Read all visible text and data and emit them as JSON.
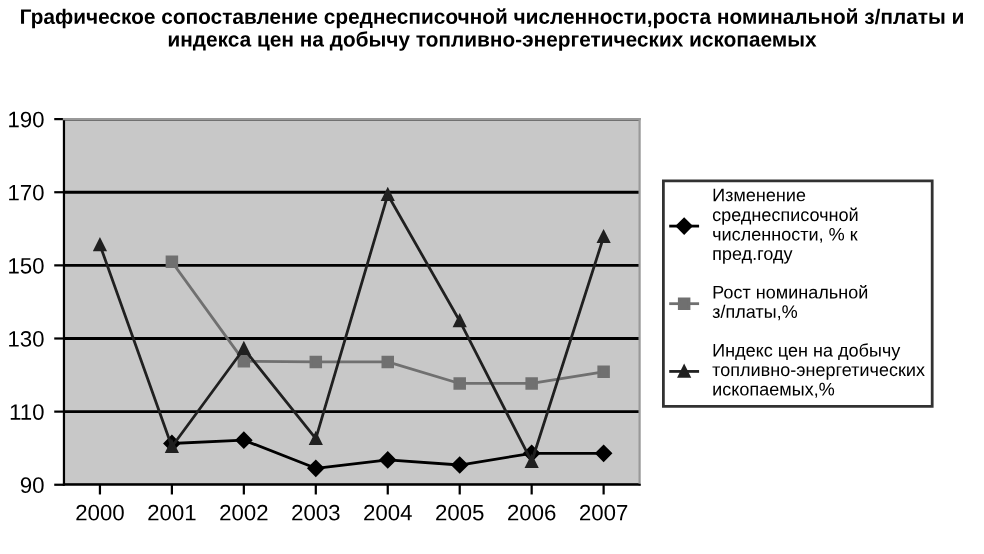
{
  "chart_data": {
    "type": "line",
    "title": "Графическое сопоставление среднесписочной численности,роста номинальной з/платы и индекса цен на добычу топливно-энергетических ископаемых",
    "categories": [
      "2000",
      "2001",
      "2002",
      "2003",
      "2004",
      "2005",
      "2006",
      "2007"
    ],
    "series": [
      {
        "name": "Изменение среднесписочной численности, % к пред.году",
        "color": "#000000",
        "marker": "diamond",
        "values": [
          null,
          101.3,
          102.2,
          94.5,
          96.8,
          95.4,
          98.6,
          98.6
        ]
      },
      {
        "name": "Рост номинальной з/платы,%",
        "color": "#707070",
        "marker": "square",
        "values": [
          null,
          151,
          123.8,
          123.6,
          123.6,
          117.7,
          117.7,
          120.9
        ]
      },
      {
        "name": "Индекс цен на добычу топливно-энергетических ископаемых,%",
        "color": "#202020",
        "marker": "triangle",
        "values": [
          155.6,
          100.4,
          127.2,
          102.6,
          169.3,
          134.8,
          96.3,
          157.8
        ]
      }
    ],
    "ylim": [
      90,
      190
    ],
    "yticks": [
      90,
      110,
      130,
      150,
      170,
      190
    ],
    "grid": "y",
    "legend": "right"
  }
}
